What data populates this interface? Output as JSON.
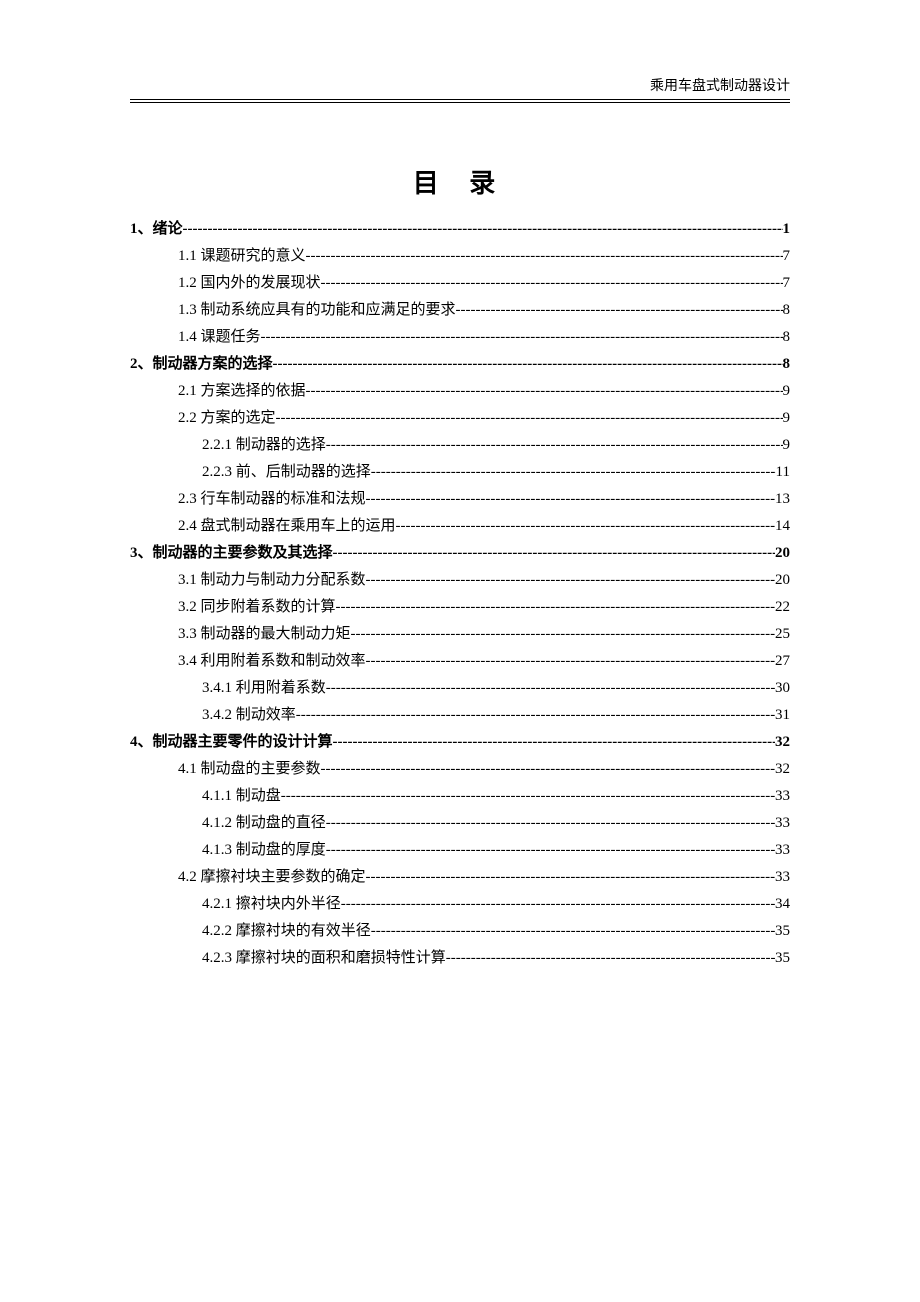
{
  "header": {
    "text": "乘用车盘式制动器设计"
  },
  "title": "目  录",
  "text_color": "#000000",
  "bg_color": "#ffffff",
  "font_family": "SimSun",
  "toc": {
    "entries": [
      {
        "label": "1、绪论",
        "page": "1",
        "level": 0,
        "bold": true,
        "leader_bold": true
      },
      {
        "label": "1.1 课题研究的意义",
        "page": "7",
        "level": 1,
        "bold": false
      },
      {
        "label": "1.2 国内外的发展现状",
        "page": "7",
        "level": 1,
        "bold": false
      },
      {
        "label": "1.3 制动系统应具有的功能和应满足的要求",
        "page": "8",
        "level": 1,
        "bold": false
      },
      {
        "label": "1.4 课题任务",
        "page": "8",
        "level": 1,
        "bold": false
      },
      {
        "label": "2、制动器方案的选择",
        "page": "8",
        "level": 0,
        "bold": true,
        "leader_bold": true
      },
      {
        "label": "2.1 方案选择的依据",
        "page": "9",
        "level": 1,
        "bold": false
      },
      {
        "label": "2.2 方案的选定",
        "page": "9",
        "level": 1,
        "bold": false
      },
      {
        "label": "2.2.1 制动器的选择",
        "page": "9",
        "level": 2,
        "bold": false
      },
      {
        "label": "2.2.3 前、后制动器的选择",
        "page": "11",
        "level": 2,
        "bold": false
      },
      {
        "label": "2.3 行车制动器的标准和法规",
        "page": "13",
        "level": 1,
        "bold": false
      },
      {
        "label": "2.4 盘式制动器在乘用车上的运用",
        "page": "14",
        "level": 1,
        "bold": false
      },
      {
        "label": "3、制动器的主要参数及其选择",
        "page": "20",
        "level": 0,
        "bold": true,
        "leader_bold": true
      },
      {
        "label": "3.1 制动力与制动力分配系数",
        "page": "20",
        "level": 1,
        "bold": false
      },
      {
        "label": "3.2 同步附着系数的计算",
        "page": "22",
        "level": 1,
        "bold": false
      },
      {
        "label": "3.3 制动器的最大制动力矩",
        "page": "25",
        "level": 1,
        "bold": false
      },
      {
        "label": "3.4 利用附着系数和制动效率",
        "page": "27",
        "level": 1,
        "bold": false
      },
      {
        "label": "3.4.1 利用附着系数",
        "page": "30",
        "level": 2,
        "bold": false
      },
      {
        "label": "3.4.2 制动效率",
        "page": "31",
        "level": 2,
        "bold": false
      },
      {
        "label": "4、制动器主要零件的设计计算",
        "page": "32",
        "level": 0,
        "bold": true,
        "leader_bold": true
      },
      {
        "label": "4.1 制动盘的主要参数",
        "page": "32",
        "level": 1,
        "bold": false
      },
      {
        "label": "4.1.1 制动盘",
        "page": "33",
        "level": 2,
        "bold": false
      },
      {
        "label": "4.1.2 制动盘的直径",
        "page": "33",
        "level": 2,
        "bold": false
      },
      {
        "label": "4.1.3 制动盘的厚度",
        "page": "33",
        "level": 2,
        "bold": false
      },
      {
        "label": "4.2 摩擦衬块主要参数的确定",
        "page": "33",
        "level": 1,
        "bold": false
      },
      {
        "label": "4.2.1 擦衬块内外半径",
        "page": "34",
        "level": 2,
        "bold": false
      },
      {
        "label": "4.2.2 摩擦衬块的有效半径",
        "page": "35",
        "level": 2,
        "bold": false
      },
      {
        "label": "4.2.3 摩擦衬块的面积和磨损特性计算",
        "page": "35",
        "level": 2,
        "bold": false
      }
    ]
  }
}
